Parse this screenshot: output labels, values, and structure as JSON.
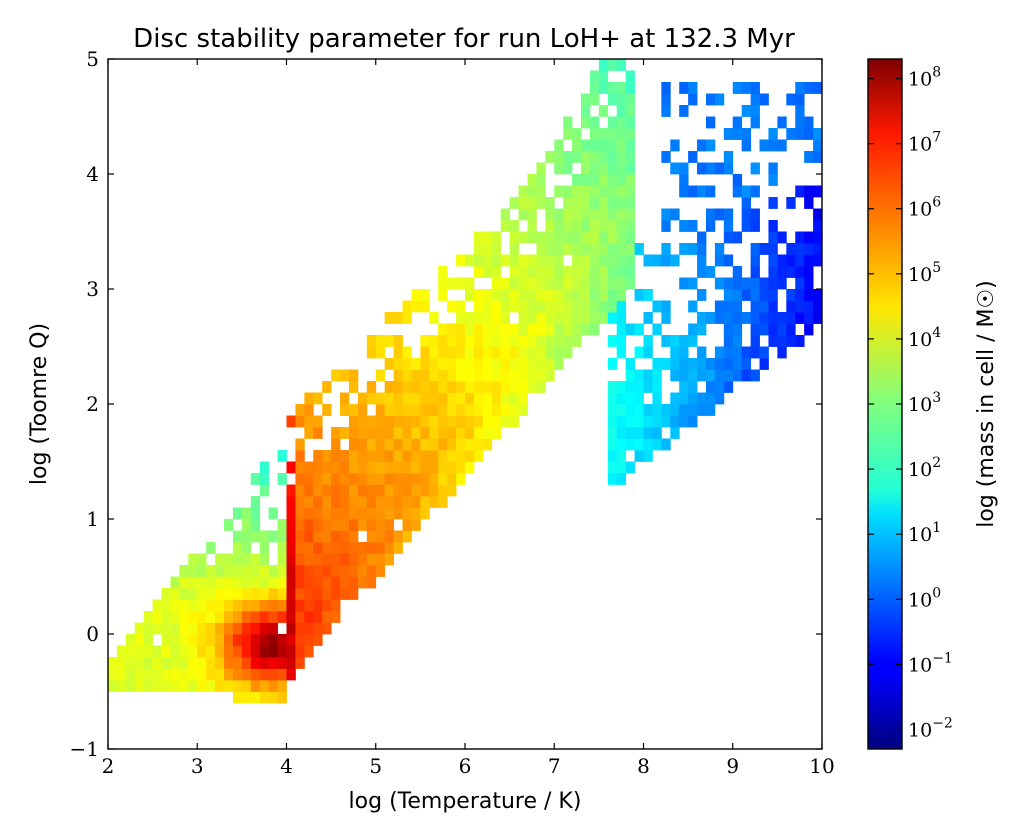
{
  "chart_data": {
    "type": "heatmap",
    "title": "Disc stability parameter for run LoH+ at 132.3 Myr",
    "xlabel": "log (Temperature / K)",
    "ylabel": "log (Toomre Q)",
    "xlim": [
      2,
      10
    ],
    "ylim": [
      -1,
      5
    ],
    "x_ticks": [
      "2",
      "3",
      "4",
      "5",
      "6",
      "7",
      "8",
      "9",
      "10"
    ],
    "y_ticks": [
      "−1",
      "0",
      "1",
      "2",
      "3",
      "4",
      "5"
    ],
    "colorbar": {
      "label": "log (mass in cell / M☉)",
      "colormap": "jet",
      "range_log10": [
        -2.3,
        8.3
      ],
      "ticks": [
        {
          "value": -2,
          "base": "10",
          "exp": "−2"
        },
        {
          "value": -1,
          "base": "10",
          "exp": "−1"
        },
        {
          "value": 0,
          "base": "10",
          "exp": "0"
        },
        {
          "value": 1,
          "base": "10",
          "exp": "1"
        },
        {
          "value": 2,
          "base": "10",
          "exp": "2"
        },
        {
          "value": 3,
          "base": "10",
          "exp": "3"
        },
        {
          "value": 4,
          "base": "10",
          "exp": "4"
        },
        {
          "value": 5,
          "base": "10",
          "exp": "5"
        },
        {
          "value": 6,
          "base": "10",
          "exp": "6"
        },
        {
          "value": 7,
          "base": "10",
          "exp": "7"
        },
        {
          "value": 8,
          "base": "10",
          "exp": "8"
        }
      ]
    },
    "bins": {
      "x_count": 80,
      "y_count": 60
    },
    "populated_regions": [
      {
        "name": "cold dense core",
        "logT_peak": 3.8,
        "logQ_peak": -0.1,
        "log_mass_peak": 8.0
      },
      {
        "name": "main diagonal band",
        "from": [
          4.0,
          0.0
        ],
        "to": [
          7.5,
          3.8
        ],
        "log_mass_range": [
          3,
          6
        ]
      },
      {
        "name": "vertical ridge at logT=4",
        "logT": 4.0,
        "logQ_range": [
          -0.4,
          2.3
        ],
        "log_mass_range": [
          6,
          8
        ]
      },
      {
        "name": "hot tail",
        "from": [
          8.0,
          1.5
        ],
        "to": [
          10.0,
          2.8
        ],
        "log_mass_range": [
          -1,
          1
        ]
      }
    ]
  }
}
